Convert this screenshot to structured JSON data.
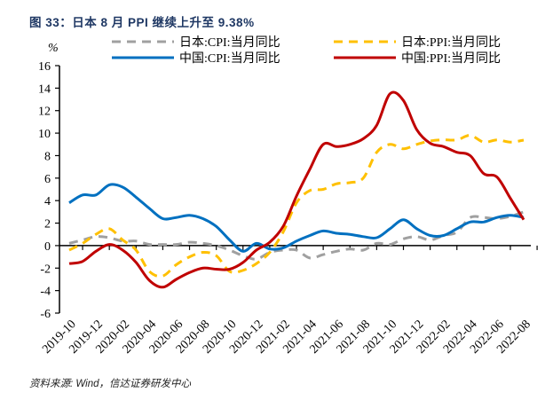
{
  "title": "图 33：日本 8 月 PPI 继续上升至 9.38%",
  "source": "资料来源: Wind，信达证券研发中心",
  "chart_data": {
    "type": "line",
    "title": "图 33：日本 8 月 PPI 继续上升至 9.38%",
    "xlabel": "",
    "ylabel": "%",
    "ylim": [
      -6,
      16
    ],
    "yticks": [
      16,
      14,
      12,
      10,
      8,
      6,
      4,
      2,
      0,
      -2,
      -4,
      -6
    ],
    "grid": false,
    "legend_position": "top",
    "x": [
      "2019-10",
      "2019-11",
      "2019-12",
      "2020-01",
      "2020-02",
      "2020-03",
      "2020-04",
      "2020-05",
      "2020-06",
      "2020-07",
      "2020-08",
      "2020-09",
      "2020-10",
      "2020-11",
      "2020-12",
      "2021-01",
      "2021-02",
      "2021-03",
      "2021-04",
      "2021-05",
      "2021-06",
      "2021-07",
      "2021-08",
      "2021-09",
      "2021-10",
      "2021-11",
      "2021-12",
      "2022-01",
      "2022-02",
      "2022-03",
      "2022-04",
      "2022-05",
      "2022-06",
      "2022-07",
      "2022-08"
    ],
    "xtick_labels": [
      "2019-10",
      "2019-12",
      "2020-02",
      "2020-04",
      "2020-06",
      "2020-08",
      "2020-10",
      "2020-12",
      "2021-02",
      "2021-04",
      "2021-06",
      "2021-08",
      "2021-10",
      "2021-12",
      "2022-02",
      "2022-04",
      "2022-06",
      "2022-08"
    ],
    "series": [
      {
        "name": "日本:CPI:当月同比",
        "color": "#a0a0a0",
        "style": "dashed",
        "values": [
          0.2,
          0.5,
          0.8,
          0.7,
          0.4,
          0.4,
          0.1,
          0.1,
          0.1,
          0.3,
          0.2,
          0.0,
          -0.4,
          -0.9,
          -1.2,
          -0.6,
          -0.4,
          -0.4,
          -1.1,
          -0.8,
          -0.5,
          -0.3,
          -0.4,
          0.2,
          0.1,
          0.6,
          0.8,
          0.5,
          0.9,
          1.2,
          2.5,
          2.5,
          2.4,
          2.6,
          3.0
        ]
      },
      {
        "name": "日本:PPI:当月同比",
        "color": "#ffc000",
        "style": "dashed",
        "values": [
          -0.4,
          0.2,
          1.0,
          1.5,
          0.5,
          -0.4,
          -2.3,
          -2.7,
          -1.7,
          -1.0,
          -0.6,
          -0.9,
          -2.3,
          -2.2,
          -1.6,
          -0.6,
          1.2,
          3.8,
          4.9,
          5.0,
          5.5,
          5.6,
          6.0,
          8.3,
          9.0,
          8.6,
          9.0,
          9.3,
          9.4,
          9.4,
          9.8,
          9.2,
          9.4,
          9.2,
          9.38
        ]
      },
      {
        "name": "中国:CPI:当月同比",
        "color": "#0070c0",
        "style": "solid",
        "values": [
          3.8,
          4.5,
          4.5,
          5.4,
          5.2,
          4.3,
          3.3,
          2.4,
          2.5,
          2.7,
          2.4,
          1.7,
          0.5,
          -0.5,
          0.2,
          -0.3,
          -0.2,
          0.4,
          0.9,
          1.3,
          1.1,
          1.0,
          0.8,
          0.7,
          1.5,
          2.3,
          1.5,
          0.9,
          0.9,
          1.5,
          2.1,
          2.1,
          2.5,
          2.7,
          2.5
        ]
      },
      {
        "name": "中国:PPI:当月同比",
        "color": "#c00000",
        "style": "solid",
        "values": [
          -1.6,
          -1.4,
          -0.5,
          0.1,
          -0.4,
          -1.5,
          -3.1,
          -3.7,
          -3.0,
          -2.4,
          -2.0,
          -2.1,
          -2.1,
          -1.5,
          -0.4,
          0.3,
          1.7,
          4.4,
          6.8,
          9.0,
          8.8,
          9.0,
          9.5,
          10.7,
          13.5,
          12.9,
          10.3,
          9.1,
          8.8,
          8.3,
          8.0,
          6.4,
          6.1,
          4.2,
          2.3
        ]
      }
    ]
  }
}
